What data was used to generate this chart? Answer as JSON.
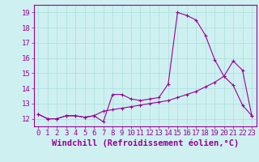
{
  "xlabel": "Windchill (Refroidissement éolien,°C)",
  "ylabel": "",
  "bg_color": "#cff0f0",
  "line_color": "#990099",
  "xlim": [
    -0.5,
    23.5
  ],
  "ylim": [
    11.5,
    19.5
  ],
  "xticks": [
    0,
    1,
    2,
    3,
    4,
    5,
    6,
    7,
    8,
    9,
    10,
    11,
    12,
    13,
    14,
    15,
    16,
    17,
    18,
    19,
    20,
    21,
    22,
    23
  ],
  "yticks": [
    12,
    13,
    14,
    15,
    16,
    17,
    18,
    19
  ],
  "line1_x": [
    0,
    1,
    2,
    3,
    4,
    5,
    6,
    7,
    8,
    9,
    10,
    11,
    12,
    13,
    14,
    15,
    16,
    17,
    18,
    19,
    20,
    21,
    22,
    23
  ],
  "line1_y": [
    12.3,
    12.0,
    12.0,
    12.2,
    12.2,
    12.1,
    12.2,
    11.8,
    13.6,
    13.6,
    13.3,
    13.2,
    13.3,
    13.4,
    14.3,
    19.0,
    18.8,
    18.5,
    17.5,
    15.9,
    14.8,
    14.2,
    12.9,
    12.2
  ],
  "line2_x": [
    0,
    1,
    2,
    3,
    4,
    5,
    6,
    7,
    8,
    9,
    10,
    11,
    12,
    13,
    14,
    15,
    16,
    17,
    18,
    19,
    20,
    21,
    22,
    23
  ],
  "line2_y": [
    12.3,
    12.0,
    12.0,
    12.2,
    12.2,
    12.1,
    12.2,
    12.5,
    12.6,
    12.7,
    12.8,
    12.9,
    13.0,
    13.1,
    13.2,
    13.4,
    13.6,
    13.8,
    14.1,
    14.4,
    14.8,
    15.8,
    15.2,
    12.2
  ],
  "grid_color": "#aadddd",
  "tick_color": "#990099",
  "tick_fontsize": 6.5,
  "xlabel_fontsize": 7.5
}
